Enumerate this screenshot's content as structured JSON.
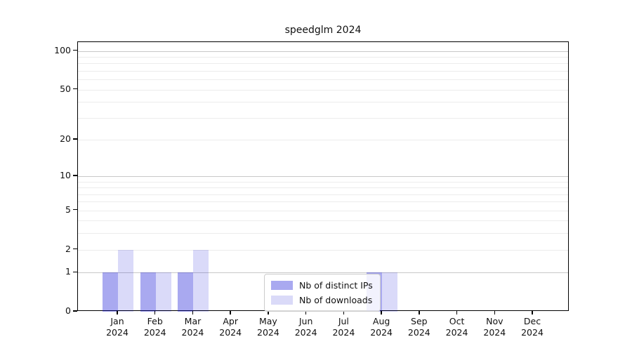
{
  "chart_data": {
    "type": "bar",
    "title": "speedglm 2024",
    "categories": [
      "Jan 2024",
      "Feb 2024",
      "Mar 2024",
      "Apr 2024",
      "May 2024",
      "Jun 2024",
      "Jul 2024",
      "Aug 2024",
      "Sep 2024",
      "Oct 2024",
      "Nov 2024",
      "Dec 2024"
    ],
    "series": [
      {
        "name": "Nb of distinct IPs",
        "color": "#a9a9f0",
        "color_rgba": "rgba(9,9,212,0.35)",
        "values": [
          1,
          1,
          1,
          0,
          0,
          0,
          0,
          1,
          0,
          0,
          0,
          0
        ]
      },
      {
        "name": "Nb of downloads",
        "color": "#dadaf8",
        "color_rgba": "rgba(8,8,215,0.15)",
        "values": [
          2,
          1,
          2,
          0,
          0,
          0,
          0,
          1,
          0,
          0,
          0,
          0
        ]
      }
    ],
    "xlabel": "",
    "ylabel": "",
    "yscale": "log1p",
    "ylim": [
      0,
      117
    ],
    "y_tick_values": [
      0,
      1,
      2,
      5,
      10,
      20,
      50,
      100
    ],
    "y_major_gridlines": [
      1,
      10,
      100
    ],
    "y_minor_gridlines": [
      2,
      3,
      4,
      5,
      6,
      7,
      8,
      9,
      20,
      30,
      40,
      50,
      60,
      70,
      80,
      90
    ],
    "grid": "horizontal",
    "legend_position": "lower center",
    "colors": {
      "major_grid": "#c8c8c8",
      "minor_grid": "#ececec",
      "spine": "#000000",
      "legend_border": "#cccccc",
      "background": "#ffffff"
    }
  }
}
